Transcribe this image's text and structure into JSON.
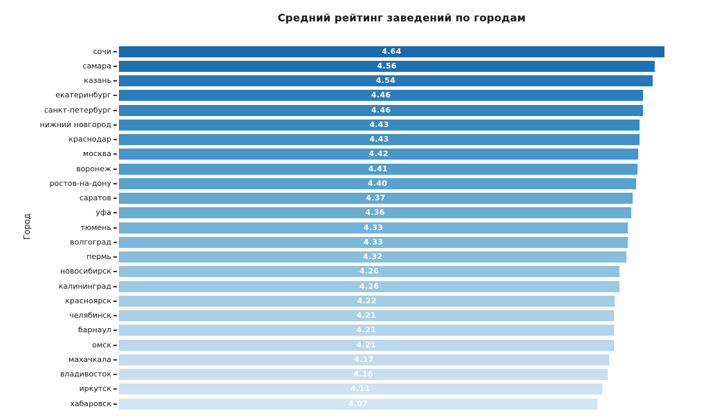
{
  "chart_data": {
    "type": "bar",
    "orientation": "horizontal",
    "title": "Средний рейтинг заведений по городам",
    "xlabel": "",
    "ylabel": "Город",
    "xlim": [
      0,
      4.81
    ],
    "grid": false,
    "legend": "none",
    "value_label_color": "#ffffff",
    "categories": [
      "сочи",
      "самара",
      "казань",
      "екатеринбург",
      "санкт-петербург",
      "нижний новгород",
      "краснодар",
      "москва",
      "воронеж",
      "ростов-на-дону",
      "саратов",
      "уфа",
      "тюмень",
      "волгоград",
      "пермь",
      "новосибирск",
      "калининград",
      "красноярск",
      "челябинск",
      "барнаул",
      "омск",
      "махачкала",
      "владивосток",
      "иркутск",
      "хабаровск"
    ],
    "values": [
      4.64,
      4.56,
      4.54,
      4.46,
      4.46,
      4.43,
      4.43,
      4.42,
      4.41,
      4.4,
      4.37,
      4.36,
      4.33,
      4.33,
      4.32,
      4.26,
      4.26,
      4.22,
      4.21,
      4.21,
      4.21,
      4.17,
      4.16,
      4.11,
      4.07
    ],
    "value_labels": [
      "4.64",
      "4.56",
      "4.54",
      "4.46",
      "4.46",
      "4.43",
      "4.43",
      "4.42",
      "4.41",
      "4.40",
      "4.37",
      "4.36",
      "4.33",
      "4.33",
      "4.32",
      "4.26",
      "4.26",
      "4.22",
      "4.21",
      "4.21",
      "4.21",
      "4.17",
      "4.16",
      "4.11",
      "4.07"
    ],
    "bar_colors": [
      "#1b69af",
      "#2070b4",
      "#2676b8",
      "#2d7dbb",
      "#3484bf",
      "#3a8ac2",
      "#4191c5",
      "#4996c9",
      "#519ccc",
      "#59a2cf",
      "#61a7d2",
      "#69add5",
      "#73b2d8",
      "#7db8da",
      "#88bedc",
      "#92c3de",
      "#9cc9e1",
      "#a4cde3",
      "#acd0e6",
      "#b4d4e9",
      "#bcd7ec",
      "#c4daee",
      "#cadef0",
      "#cfe1f2",
      "#d3e4f4"
    ]
  }
}
